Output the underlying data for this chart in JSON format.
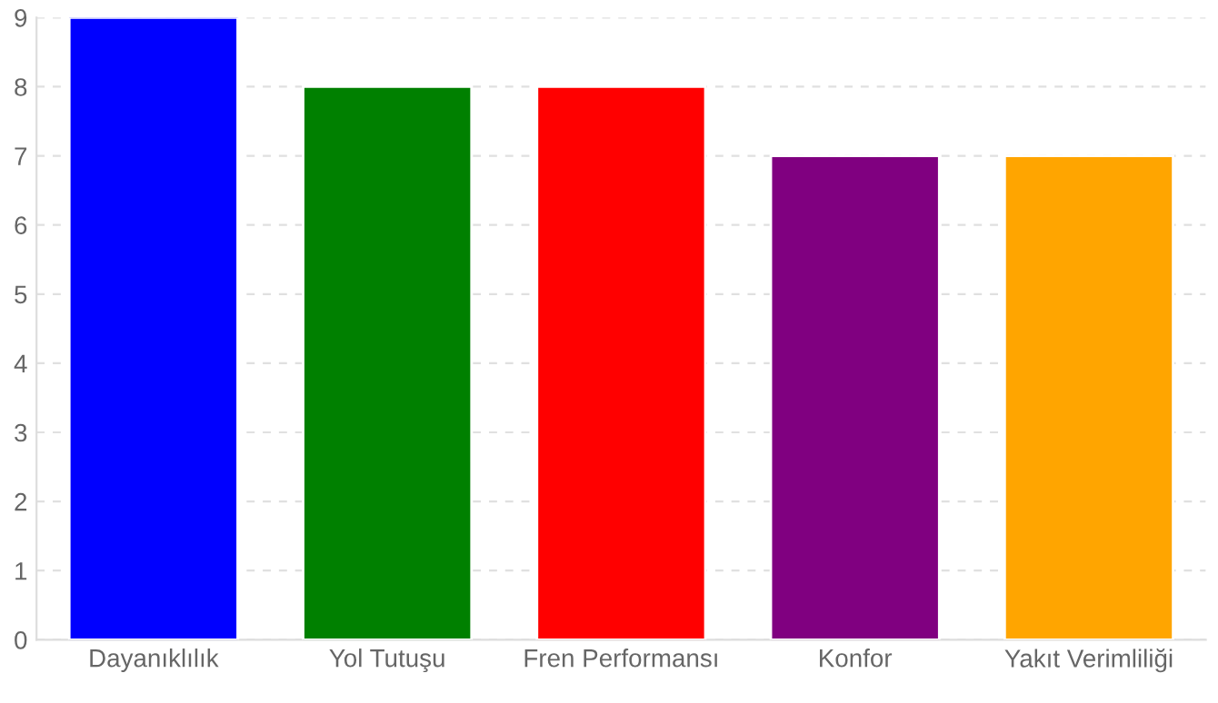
{
  "chart_data": {
    "type": "bar",
    "categories": [
      "Dayanıklılık",
      "Yol Tutuşu",
      "Fren Performansı",
      "Konfor",
      "Yakıt Verimliliği"
    ],
    "values": [
      9,
      8,
      8,
      7,
      7
    ],
    "colors": [
      "#0000ff",
      "#008000",
      "#ff0000",
      "#800080",
      "#ffa500"
    ],
    "ylim": [
      0,
      9
    ],
    "yticks": [
      0,
      1,
      2,
      3,
      4,
      5,
      6,
      7,
      8,
      9
    ],
    "grid": "y",
    "legend": false
  }
}
